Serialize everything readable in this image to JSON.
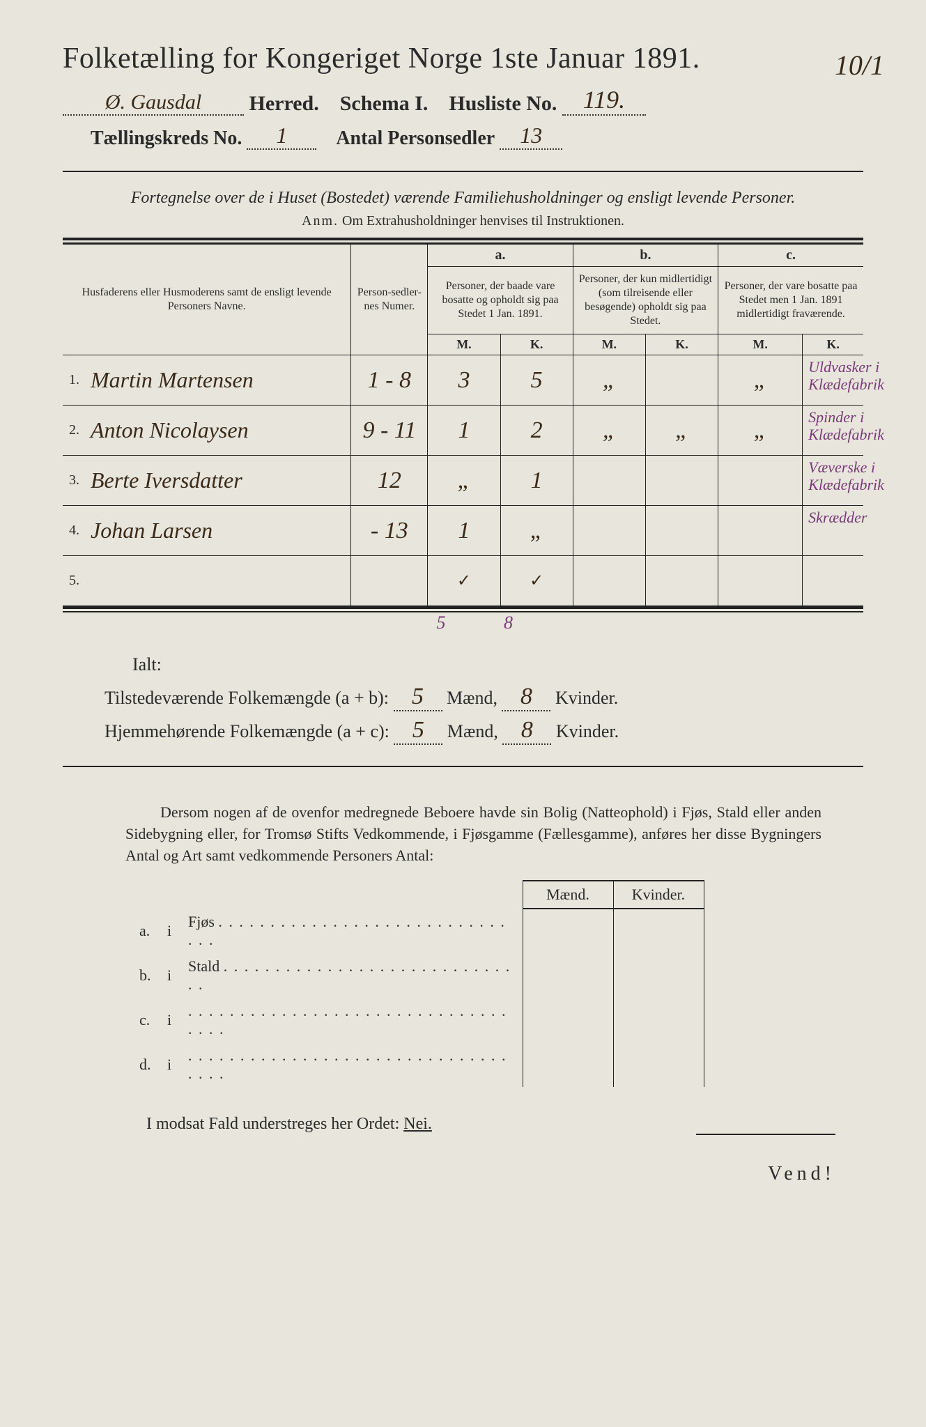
{
  "title": "Folketælling for Kongeriget Norge 1ste Januar 1891.",
  "topright_hand": "10/1",
  "line2": {
    "herred_hand": "Ø. Gausdal",
    "herred_label": "Herred.",
    "schema_label": "Schema I.",
    "husliste_label": "Husliste No.",
    "husliste_hand": "119."
  },
  "line3": {
    "kreds_label": "Tællingskreds No.",
    "kreds_hand": "1",
    "antal_label": "Antal Personsedler",
    "antal_hand": "13"
  },
  "subtitle": "Fortegnelse over de i Huset (Bostedet) værende Familiehusholdninger og ensligt levende Personer.",
  "anm_prefix": "Anm.",
  "anm_text": "Om Extrahusholdninger henvises til Instruktionen.",
  "cols": {
    "name_header": "Husfaderens eller Husmoderens samt de ensligt levende Personers Navne.",
    "num_header": "Person-sedler-nes Numer.",
    "a_label": "a.",
    "a_desc": "Personer, der baade vare bosatte og opholdt sig paa Stedet 1 Jan. 1891.",
    "b_label": "b.",
    "b_desc": "Personer, der kun midlertidigt (som tilreisende eller besøgende) opholdt sig paa Stedet.",
    "c_label": "c.",
    "c_desc": "Personer, der vare bosatte paa Stedet men 1 Jan. 1891 midlertidigt fraværende.",
    "m": "M.",
    "k": "K."
  },
  "rows": [
    {
      "n": "1.",
      "name": "Martin Martensen",
      "num": "1 - 8",
      "am": "3",
      "ak": "5",
      "bm": "„",
      "bk": "",
      "cm": "„",
      "ck": "",
      "note": "Uldvasker i Klædefabrik"
    },
    {
      "n": "2.",
      "name": "Anton Nicolaysen",
      "num": "9 - 11",
      "am": "1",
      "ak": "2",
      "bm": "„",
      "bk": "„",
      "cm": "„",
      "ck": "",
      "note": "Spinder i Klædefabrik"
    },
    {
      "n": "3.",
      "name": "Berte Iversdatter",
      "num": "12",
      "am": "„",
      "ak": "1",
      "bm": "",
      "bk": "",
      "cm": "",
      "ck": "",
      "note": "Væverske i Klædefabrik"
    },
    {
      "n": "4.",
      "name": "Johan Larsen",
      "num": "- 13",
      "am": "1",
      "ak": "„",
      "bm": "",
      "bk": "",
      "cm": "",
      "ck": "",
      "note": "Skrædder"
    },
    {
      "n": "5.",
      "name": "",
      "num": "",
      "am": "✓",
      "ak": "✓",
      "bm": "",
      "bk": "",
      "cm": "",
      "ck": "",
      "note": ""
    }
  ],
  "below_sums": {
    "am": "5",
    "ak": "8"
  },
  "ialt": "Ialt:",
  "sum1": {
    "label": "Tilstedeværende Folkemængde (a + b):",
    "m": "5",
    "mlab": "Mænd,",
    "k": "8",
    "klab": "Kvinder."
  },
  "sum2": {
    "label": "Hjemmehørende Folkemængde (a + c):",
    "m": "5",
    "mlab": "Mænd,",
    "k": "8",
    "klab": "Kvinder."
  },
  "para": "Dersom nogen af de ovenfor medregnede Beboere havde sin Bolig (Natteophold) i Fjøs, Stald eller anden Sidebygning eller, for Tromsø Stifts Vedkommende, i Fjøsgamme (Fællesgamme), anføres her disse Bygningers Antal og Art samt vedkommende Personers Antal:",
  "bldg": {
    "maend": "Mænd.",
    "kvinder": "Kvinder.",
    "rows": [
      {
        "l": "a.",
        "i": "i",
        "t": "Fjøs",
        "dots": ". . . . . . . . . . . . . . . . . . . . . . . . . . . . . . ."
      },
      {
        "l": "b.",
        "i": "i",
        "t": "Stald",
        "dots": ". . . . . . . . . . . . . . . . . . . . . . . . . . . . . ."
      },
      {
        "l": "c.",
        "i": "i",
        "t": "",
        "dots": ". . . . . . . . . . . . . . . . . . . . . . . . . . . . . . . . . . ."
      },
      {
        "l": "d.",
        "i": "i",
        "t": "",
        "dots": ". . . . . . . . . . . . . . . . . . . . . . . . . . . . . . . . . . ."
      }
    ]
  },
  "modsat": "I modsat Fald understreges her Ordet:",
  "nei": "Nei.",
  "vend": "Vend!"
}
